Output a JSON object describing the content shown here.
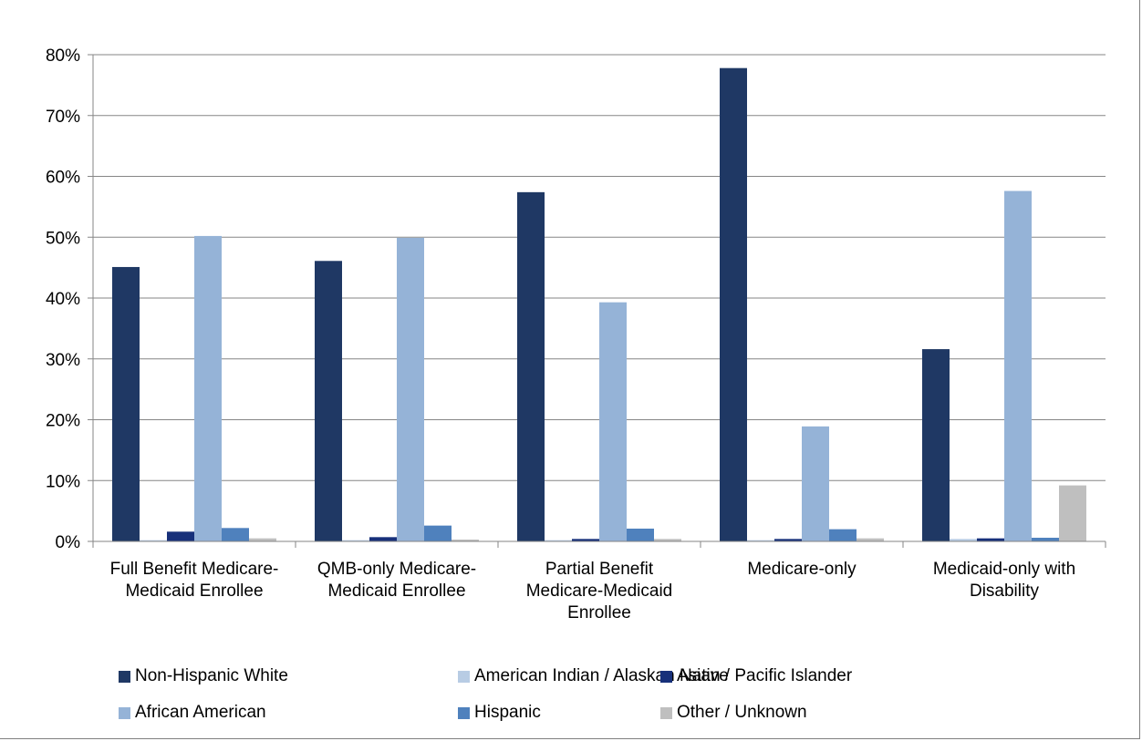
{
  "chart_data": {
    "type": "bar",
    "title": "",
    "xlabel": "",
    "ylabel": "",
    "ylim": [
      0,
      80
    ],
    "y_ticks": [
      "0%",
      "10%",
      "20%",
      "30%",
      "40%",
      "50%",
      "60%",
      "70%",
      "80%"
    ],
    "y_tick_values": [
      0,
      10,
      20,
      30,
      40,
      50,
      60,
      70,
      80
    ],
    "grid": true,
    "legend_position": "bottom",
    "categories": [
      [
        "Full Benefit Medicare-",
        "Medicaid Enrollee"
      ],
      [
        "QMB-only Medicare-",
        "Medicaid Enrollee"
      ],
      [
        "Partial Benefit",
        "Medicare-Medicaid",
        "Enrollee"
      ],
      [
        "Medicare-only"
      ],
      [
        "Medicaid-only with",
        "Disability"
      ]
    ],
    "series": [
      {
        "name": "Non-Hispanic White",
        "color": "#1f3864",
        "values": [
          45.1,
          46.1,
          57.4,
          77.8,
          31.6
        ]
      },
      {
        "name": "American Indian / Alaskan Native",
        "color": "#b8cce4",
        "values": [
          0.2,
          0.2,
          0.2,
          0.2,
          0.4
        ]
      },
      {
        "name": "Asian / Pacific Islander",
        "color": "#17307a",
        "values": [
          1.6,
          0.7,
          0.4,
          0.4,
          0.5
        ]
      },
      {
        "name": "African American",
        "color": "#95b3d7",
        "values": [
          50.2,
          49.9,
          39.3,
          18.9,
          57.6
        ]
      },
      {
        "name": "Hispanic",
        "color": "#4f81bd",
        "values": [
          2.2,
          2.6,
          2.1,
          2.0,
          0.6
        ]
      },
      {
        "name": "Other / Unknown",
        "color": "#bfbfbf",
        "values": [
          0.5,
          0.3,
          0.4,
          0.5,
          9.2
        ]
      }
    ]
  }
}
